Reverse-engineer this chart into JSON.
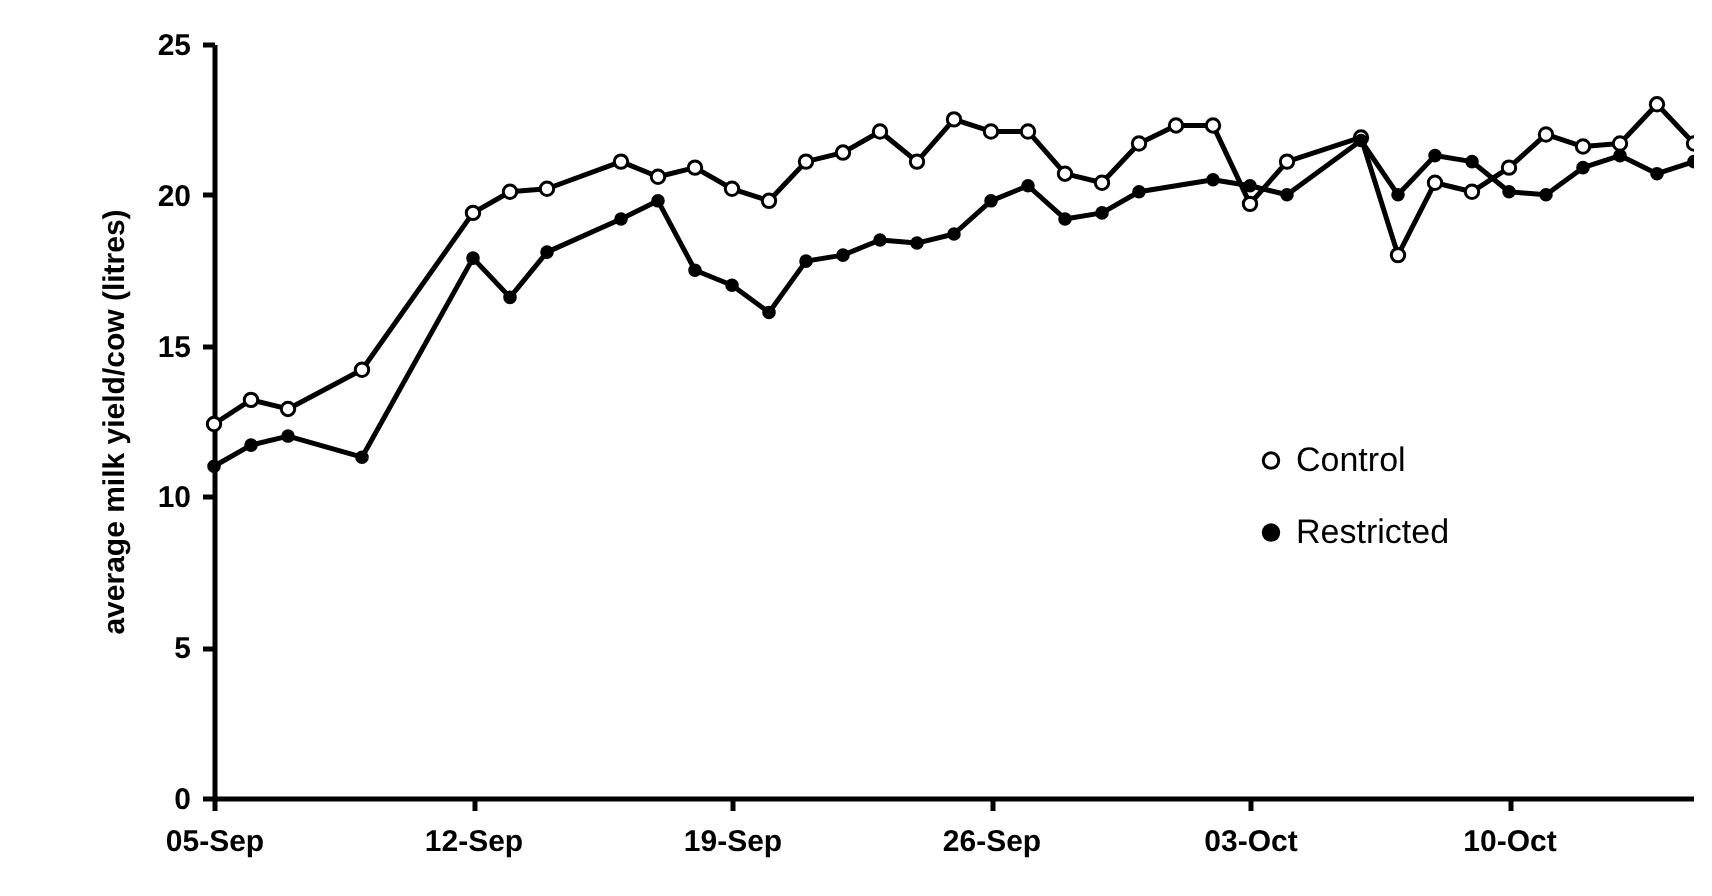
{
  "chart_data": {
    "type": "line",
    "ylabel": "average milk yield/cow (litres)",
    "xlim": [
      "--09-05",
      "--10-15"
    ],
    "xticks": [
      {
        "value": "--09-05",
        "label": "05-Sep"
      },
      {
        "value": "--09-12",
        "label": "12-Sep"
      },
      {
        "value": "--09-19",
        "label": "19-Sep"
      },
      {
        "value": "--09-26",
        "label": "26-Sep"
      },
      {
        "value": "--10-03",
        "label": "03-Oct"
      },
      {
        "value": "--10-10",
        "label": "10-Oct"
      }
    ],
    "ylim": [
      0,
      25
    ],
    "yticks": [
      0,
      5,
      10,
      15,
      20,
      25
    ],
    "grid": false,
    "legend": "right",
    "line_style": "solid",
    "series": [
      {
        "name": "Control",
        "color": "#000000",
        "marker": "circle",
        "x": [
          "--09-05",
          "--09-06",
          "--09-07",
          "--09-09",
          "--09-12",
          "--09-13",
          "--09-14",
          "--09-16",
          "--09-17",
          "--09-18",
          "--09-19",
          "--09-20",
          "--09-21",
          "--09-22",
          "--09-23",
          "--09-24",
          "--09-25",
          "--09-26",
          "--09-27",
          "--09-28",
          "--09-29",
          "--09-30",
          "--10-01",
          "--10-02",
          "--10-03",
          "--10-04",
          "--10-06",
          "--10-07",
          "--10-08",
          "--10-09",
          "--10-10",
          "--10-11",
          "--10-12",
          "--10-13",
          "--10-14",
          "--10-15"
        ],
        "values": [
          12.4,
          13.2,
          12.9,
          14.2,
          19.4,
          20.1,
          20.2,
          21.1,
          20.6,
          20.9,
          20.2,
          19.8,
          21.1,
          21.4,
          22.1,
          21.1,
          22.5,
          22.1,
          22.1,
          20.7,
          20.4,
          21.7,
          22.3,
          22.3,
          19.7,
          21.1,
          21.9,
          18.0,
          20.4,
          20.1,
          20.9,
          22.0,
          21.6,
          21.7,
          23.0,
          21.7
        ]
      },
      {
        "name": "Restricted",
        "color": "#000000",
        "marker": "dot",
        "x": [
          "--09-05",
          "--09-06",
          "--09-07",
          "--09-09",
          "--09-12",
          "--09-13",
          "--09-14",
          "--09-16",
          "--09-17",
          "--09-18",
          "--09-19",
          "--09-20",
          "--09-21",
          "--09-22",
          "--09-23",
          "--09-24",
          "--09-25",
          "--09-26",
          "--09-27",
          "--09-28",
          "--09-29",
          "--09-30",
          "--10-02",
          "--10-03",
          "--10-04",
          "--10-06",
          "--10-07",
          "--10-08",
          "--10-09",
          "--10-10",
          "--10-11",
          "--10-12",
          "--10-13",
          "--10-14",
          "--10-15"
        ],
        "values": [
          11.0,
          11.7,
          12.0,
          11.3,
          17.9,
          16.6,
          18.1,
          19.2,
          19.8,
          17.5,
          17.0,
          16.1,
          17.8,
          18.0,
          18.5,
          18.4,
          18.7,
          19.8,
          20.3,
          19.2,
          19.4,
          20.1,
          20.5,
          20.3,
          20.0,
          21.8,
          20.0,
          21.3,
          21.1,
          20.1,
          20.0,
          20.9,
          21.3,
          20.7,
          21.1
        ]
      }
    ]
  }
}
